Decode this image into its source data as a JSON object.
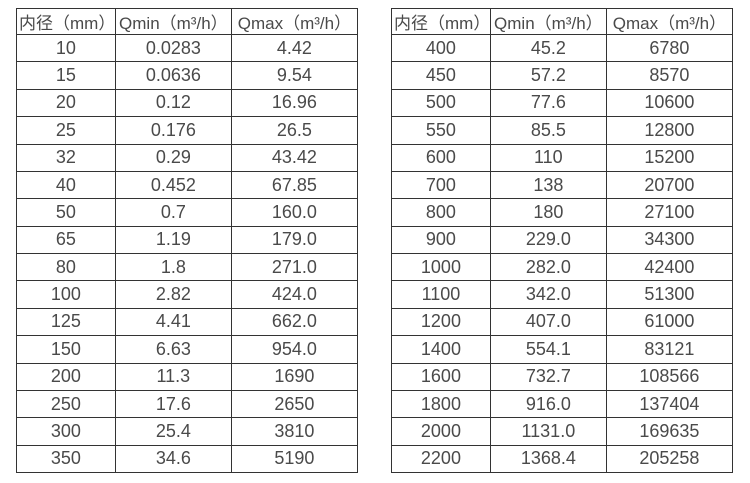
{
  "page": {
    "background": "#ffffff",
    "text_color": "#4a4a4a",
    "border_color": "#333333"
  },
  "chart_data": [
    {
      "type": "table",
      "title": "",
      "columns": [
        "内径（mm）",
        "Qmin（m³/h）",
        "Qmax（m³/h）"
      ],
      "rows": [
        [
          "10",
          "0.0283",
          "4.42"
        ],
        [
          "15",
          "0.0636",
          "9.54"
        ],
        [
          "20",
          "0.12",
          "16.96"
        ],
        [
          "25",
          "0.176",
          "26.5"
        ],
        [
          "32",
          "0.29",
          "43.42"
        ],
        [
          "40",
          "0.452",
          "67.85"
        ],
        [
          "50",
          "0.7",
          "160.0"
        ],
        [
          "65",
          "1.19",
          "179.0"
        ],
        [
          "80",
          "1.8",
          "271.0"
        ],
        [
          "100",
          "2.82",
          "424.0"
        ],
        [
          "125",
          "4.41",
          "662.0"
        ],
        [
          "150",
          "6.63",
          "954.0"
        ],
        [
          "200",
          "11.3",
          "1690"
        ],
        [
          "250",
          "17.6",
          "2650"
        ],
        [
          "300",
          "25.4",
          "3810"
        ],
        [
          "350",
          "34.6",
          "5190"
        ]
      ]
    },
    {
      "type": "table",
      "title": "",
      "columns": [
        "内径（mm）",
        "Qmin（m³/h）",
        "Qmax（m³/h）"
      ],
      "rows": [
        [
          "400",
          "45.2",
          "6780"
        ],
        [
          "450",
          "57.2",
          "8570"
        ],
        [
          "500",
          "77.6",
          "10600"
        ],
        [
          "550",
          "85.5",
          "12800"
        ],
        [
          "600",
          "110",
          "15200"
        ],
        [
          "700",
          "138",
          "20700"
        ],
        [
          "800",
          "180",
          "27100"
        ],
        [
          "900",
          "229.0",
          "34300"
        ],
        [
          "1000",
          "282.0",
          "42400"
        ],
        [
          "1100",
          "342.0",
          "51300"
        ],
        [
          "1200",
          "407.0",
          "61000"
        ],
        [
          "1400",
          "554.1",
          "83121"
        ],
        [
          "1600",
          "732.7",
          "108566"
        ],
        [
          "1800",
          "916.0",
          "137404"
        ],
        [
          "2000",
          "1131.0",
          "169635"
        ],
        [
          "2200",
          "1368.4",
          "205258"
        ]
      ]
    }
  ]
}
